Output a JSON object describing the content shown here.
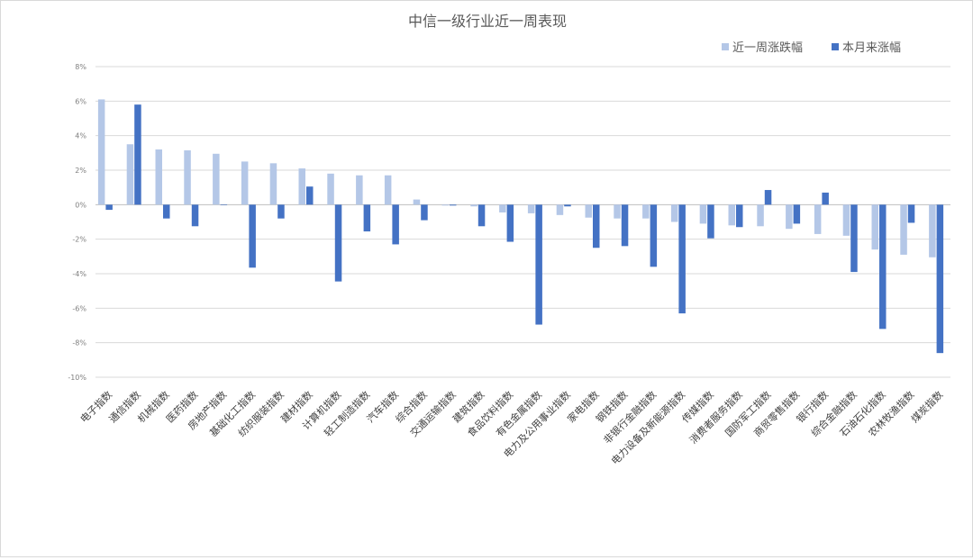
{
  "chart_data": {
    "type": "bar",
    "title": "中信一级行业近一周表现",
    "xlabel": "",
    "ylabel": "",
    "ylim": [
      -10,
      8
    ],
    "ytick_step": 2,
    "ytick_format": "percent",
    "grid": true,
    "legend_position": "top-right",
    "categories": [
      "电子指数",
      "通信指数",
      "机械指数",
      "医药指数",
      "房地产指数",
      "基础化工指数",
      "纺织服装指数",
      "建材指数",
      "计算机指数",
      "轻工制造指数",
      "汽车指数",
      "综合指数",
      "交通运输指数",
      "建筑指数",
      "食品饮料指数",
      "有色金属指数",
      "电力及公用事业指数",
      "家电指数",
      "钢铁指数",
      "非银行金融指数",
      "电力设备及新能源指数",
      "传媒指数",
      "消费者服务指数",
      "国防军工指数",
      "商贸零售指数",
      "银行指数",
      "综合金融指数",
      "石油石化指数",
      "农林牧渔指数",
      "煤炭指数"
    ],
    "series": [
      {
        "name": "近一周涨跌幅",
        "color": "#b4c7e7",
        "values": [
          6.1,
          3.5,
          3.2,
          3.15,
          2.95,
          2.5,
          2.4,
          2.1,
          1.8,
          1.7,
          1.7,
          0.3,
          -0.05,
          -0.1,
          -0.45,
          -0.5,
          -0.6,
          -0.75,
          -0.8,
          -0.8,
          -1.0,
          -1.1,
          -1.2,
          -1.25,
          -1.4,
          -1.7,
          -1.8,
          -2.6,
          -2.9,
          -3.05
        ]
      },
      {
        "name": "本月来涨幅",
        "color": "#4472c4",
        "values": [
          -0.3,
          5.8,
          -0.8,
          -1.25,
          0.0,
          -3.65,
          -0.8,
          1.05,
          -4.45,
          -1.55,
          -2.3,
          -0.9,
          -0.05,
          -1.25,
          -2.15,
          -6.95,
          -0.1,
          -2.5,
          -2.4,
          -3.6,
          -6.3,
          -1.95,
          -1.3,
          0.85,
          -1.1,
          0.7,
          -3.9,
          -7.2,
          -1.05,
          -8.6
        ]
      }
    ]
  }
}
